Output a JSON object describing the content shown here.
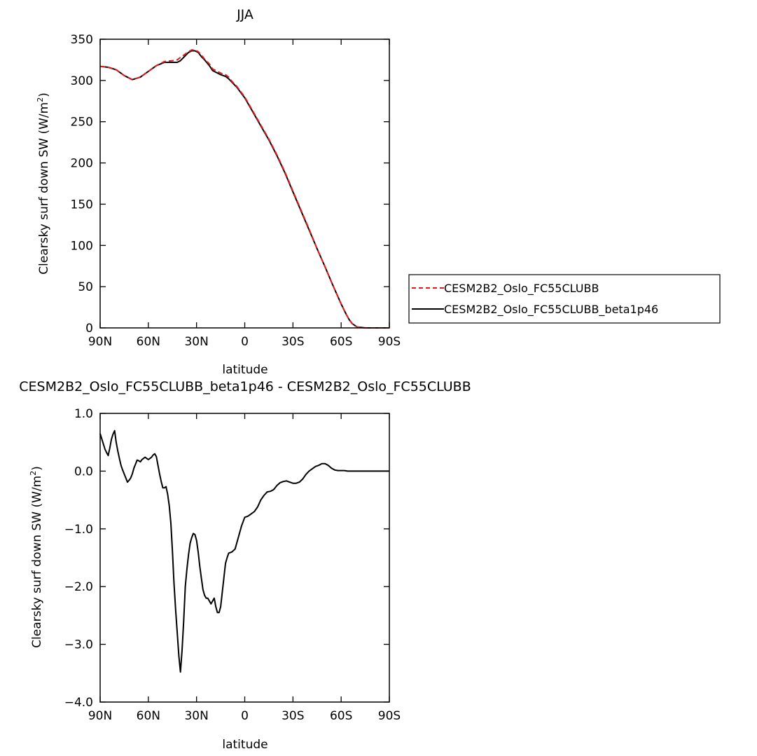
{
  "chart_data": [
    {
      "type": "line",
      "title": "JJA",
      "xlabel": "latitude",
      "ylabel": "Clearsky surf down SW (W/m²)",
      "ylabel_main": "Clearsky surf down SW (W/m",
      "ylabel_sup": "2",
      "ylabel_end": ")",
      "xlim": [
        90,
        -90
      ],
      "ylim": [
        0,
        350
      ],
      "x_ticks": [
        {
          "value": 90,
          "label": "90N"
        },
        {
          "value": 60,
          "label": "60N"
        },
        {
          "value": 30,
          "label": "30N"
        },
        {
          "value": 0,
          "label": "0"
        },
        {
          "value": -30,
          "label": "30S"
        },
        {
          "value": -60,
          "label": "60S"
        },
        {
          "value": -90,
          "label": "90S"
        }
      ],
      "y_ticks": [
        {
          "value": 0,
          "label": "0"
        },
        {
          "value": 50,
          "label": "50"
        },
        {
          "value": 100,
          "label": "100"
        },
        {
          "value": 150,
          "label": "150"
        },
        {
          "value": 200,
          "label": "200"
        },
        {
          "value": 250,
          "label": "250"
        },
        {
          "value": 300,
          "label": "300"
        },
        {
          "value": 350,
          "label": "350"
        }
      ],
      "legend": "right",
      "series": [
        {
          "name": "CESM2B2_Oslo_FC55CLUBB",
          "color": "#e41a1c",
          "dash": true,
          "x": [
            90,
            85,
            80,
            75,
            70,
            65,
            60,
            55,
            50,
            45,
            42,
            40,
            37,
            35,
            33,
            31,
            29,
            27,
            25,
            22,
            20,
            17,
            15,
            12,
            10,
            8,
            5,
            0,
            -5,
            -10,
            -15,
            -20,
            -25,
            -30,
            -35,
            -40,
            -45,
            -50,
            -55,
            -60,
            -63,
            -65,
            -67,
            -70,
            -75,
            -80,
            -85,
            -90
          ],
          "y": [
            317,
            316,
            313,
            306,
            301,
            304,
            311,
            318,
            323,
            324,
            325,
            328,
            332,
            335,
            337,
            337,
            335,
            331,
            326,
            320,
            314,
            311,
            309,
            307,
            304,
            299,
            293,
            280,
            263,
            246,
            229,
            210,
            189,
            166,
            143,
            120,
            96,
            74,
            51,
            29,
            17,
            10,
            5,
            1,
            0,
            0,
            0,
            0
          ]
        },
        {
          "name": "CESM2B2_Oslo_FC55CLUBB_beta1p46",
          "color": "#000000",
          "dash": false,
          "x": [
            90,
            85,
            80,
            75,
            70,
            65,
            60,
            55,
            50,
            45,
            42,
            40,
            37,
            35,
            33,
            31,
            29,
            27,
            25,
            22,
            20,
            17,
            15,
            12,
            10,
            8,
            5,
            0,
            -5,
            -10,
            -15,
            -20,
            -25,
            -30,
            -35,
            -40,
            -45,
            -50,
            -55,
            -60,
            -63,
            -65,
            -67,
            -70,
            -75,
            -80,
            -85,
            -90
          ],
          "y": [
            317,
            316,
            313,
            306,
            301,
            304,
            311,
            318,
            322,
            322,
            322,
            324,
            330,
            334,
            336,
            336,
            334,
            329,
            325,
            318,
            312,
            309,
            307,
            305,
            302,
            298,
            292,
            279,
            262,
            245,
            228,
            209,
            188,
            165,
            142,
            119,
            96,
            74,
            51,
            29,
            17,
            10,
            5,
            1,
            0,
            0,
            0,
            0
          ]
        }
      ]
    },
    {
      "type": "line",
      "title": "CESM2B2_Oslo_FC55CLUBB_beta1p46 - CESM2B2_Oslo_FC55CLUBB",
      "xlabel": "latitude",
      "ylabel": "Clearsky surf down SW (W/m²)",
      "ylabel_main": "Clearsky surf down SW (W/m",
      "ylabel_sup": "2",
      "ylabel_end": ")",
      "xlim": [
        90,
        -90
      ],
      "ylim": [
        -4.0,
        1.0
      ],
      "x_ticks": [
        {
          "value": 90,
          "label": "90N"
        },
        {
          "value": 60,
          "label": "60N"
        },
        {
          "value": 30,
          "label": "30N"
        },
        {
          "value": 0,
          "label": "0"
        },
        {
          "value": -30,
          "label": "30S"
        },
        {
          "value": -60,
          "label": "60S"
        },
        {
          "value": -90,
          "label": "90S"
        }
      ],
      "y_ticks": [
        {
          "value": -4.0,
          "label": "−4.0"
        },
        {
          "value": -3.0,
          "label": "−3.0"
        },
        {
          "value": -2.0,
          "label": "−2.0"
        },
        {
          "value": -1.0,
          "label": "−1.0"
        },
        {
          "value": 0.0,
          "label": "0.0"
        },
        {
          "value": 1.0,
          "label": "1.0"
        }
      ],
      "series": [
        {
          "name": "",
          "color": "#000000",
          "dash": false,
          "x": [
            90,
            89,
            88,
            87,
            86,
            85,
            84,
            83,
            82,
            81,
            80,
            79,
            78,
            77,
            76,
            75,
            74,
            73,
            72,
            71,
            70,
            69,
            68,
            67,
            66,
            65,
            64,
            63,
            62,
            61,
            60,
            59,
            58,
            57,
            56,
            55,
            54,
            53,
            52,
            51,
            50,
            49,
            48,
            47,
            46,
            45,
            44,
            43,
            42,
            41,
            40,
            39,
            38,
            37,
            36,
            35,
            34,
            33,
            32,
            31,
            30,
            29,
            28,
            27,
            26,
            25,
            24,
            23,
            22,
            21,
            20,
            19,
            18,
            17,
            16,
            15,
            14,
            13,
            12,
            11,
            10,
            8,
            6,
            4,
            2,
            0,
            -2,
            -4,
            -6,
            -8,
            -10,
            -12,
            -14,
            -16,
            -18,
            -20,
            -22,
            -24,
            -26,
            -28,
            -30,
            -32,
            -34,
            -36,
            -38,
            -40,
            -42,
            -44,
            -46,
            -48,
            -50,
            -52,
            -54,
            -56,
            -58,
            -60,
            -62,
            -64,
            -66,
            -68,
            -70,
            -72,
            -74,
            -76,
            -78,
            -80,
            -85,
            -90
          ],
          "y": [
            0.65,
            0.56,
            0.47,
            0.38,
            0.32,
            0.27,
            0.4,
            0.55,
            0.64,
            0.7,
            0.5,
            0.35,
            0.22,
            0.1,
            0.02,
            -0.05,
            -0.12,
            -0.19,
            -0.16,
            -0.12,
            -0.05,
            0.05,
            0.12,
            0.19,
            0.18,
            0.16,
            0.2,
            0.22,
            0.24,
            0.22,
            0.2,
            0.22,
            0.24,
            0.28,
            0.3,
            0.25,
            0.1,
            -0.05,
            -0.18,
            -0.29,
            -0.29,
            -0.27,
            -0.4,
            -0.6,
            -0.9,
            -1.4,
            -1.95,
            -2.4,
            -2.8,
            -3.2,
            -3.48,
            -3.1,
            -2.6,
            -2.0,
            -1.7,
            -1.45,
            -1.25,
            -1.15,
            -1.08,
            -1.1,
            -1.2,
            -1.4,
            -1.65,
            -1.85,
            -2.05,
            -2.15,
            -2.2,
            -2.2,
            -2.25,
            -2.3,
            -2.25,
            -2.2,
            -2.35,
            -2.45,
            -2.45,
            -2.35,
            -2.1,
            -1.85,
            -1.6,
            -1.5,
            -1.42,
            -1.4,
            -1.35,
            -1.15,
            -0.95,
            -0.8,
            -0.78,
            -0.74,
            -0.7,
            -0.62,
            -0.5,
            -0.42,
            -0.36,
            -0.35,
            -0.32,
            -0.25,
            -0.2,
            -0.18,
            -0.17,
            -0.19,
            -0.21,
            -0.21,
            -0.19,
            -0.14,
            -0.06,
            0.0,
            0.04,
            0.08,
            0.1,
            0.13,
            0.13,
            0.1,
            0.05,
            0.02,
            0.01,
            0.01,
            0.01,
            0.0,
            0.0,
            0.0,
            0.0,
            0.0,
            0.0,
            0.0,
            0.0,
            0.0,
            0.0,
            0.0
          ]
        }
      ]
    }
  ]
}
